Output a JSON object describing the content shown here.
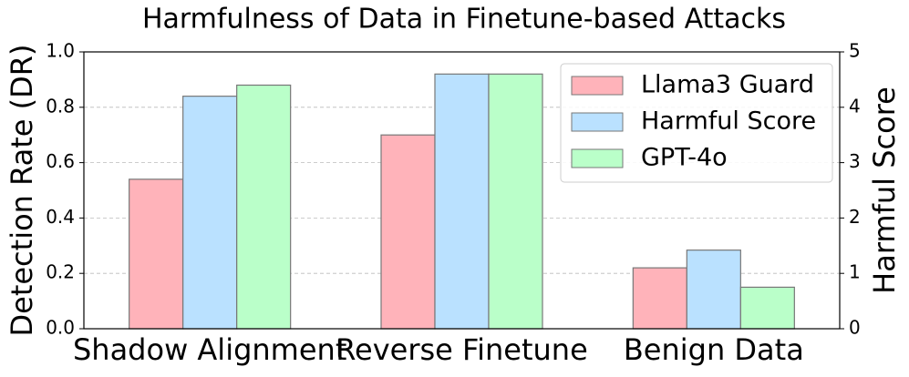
{
  "chart_data": {
    "type": "bar",
    "title": "Harmfulness of Data in Finetune-based Attacks",
    "categories": [
      "Shadow Alignment",
      "Reverse Finetune",
      "Benign Data"
    ],
    "ylabel": "Detection Rate (DR)",
    "y2label": "Harmful Score",
    "series": [
      {
        "name": "Llama3 Guard",
        "color": "#ffb3ba",
        "values": [
          0.54,
          0.7,
          0.22
        ]
      },
      {
        "name": "Harmful Score",
        "color": "#bae1ff",
        "values": [
          4.2,
          4.6,
          1.42
        ],
        "axis": "y2"
      },
      {
        "name": "GPT-4o",
        "color": "#baffc9",
        "values": [
          0.88,
          0.92,
          0.15
        ]
      }
    ],
    "ylim": [
      0,
      1
    ],
    "yticks": [
      {
        "value": 0,
        "label": "0.0"
      },
      0.2,
      0.4,
      0.6,
      0.8,
      {
        "value": 1,
        "label": "1.0"
      }
    ],
    "y2lim": [
      0,
      5
    ],
    "y2ticks": [
      0,
      1,
      2,
      3,
      4,
      5
    ],
    "grid": true,
    "legend": "upper right"
  }
}
